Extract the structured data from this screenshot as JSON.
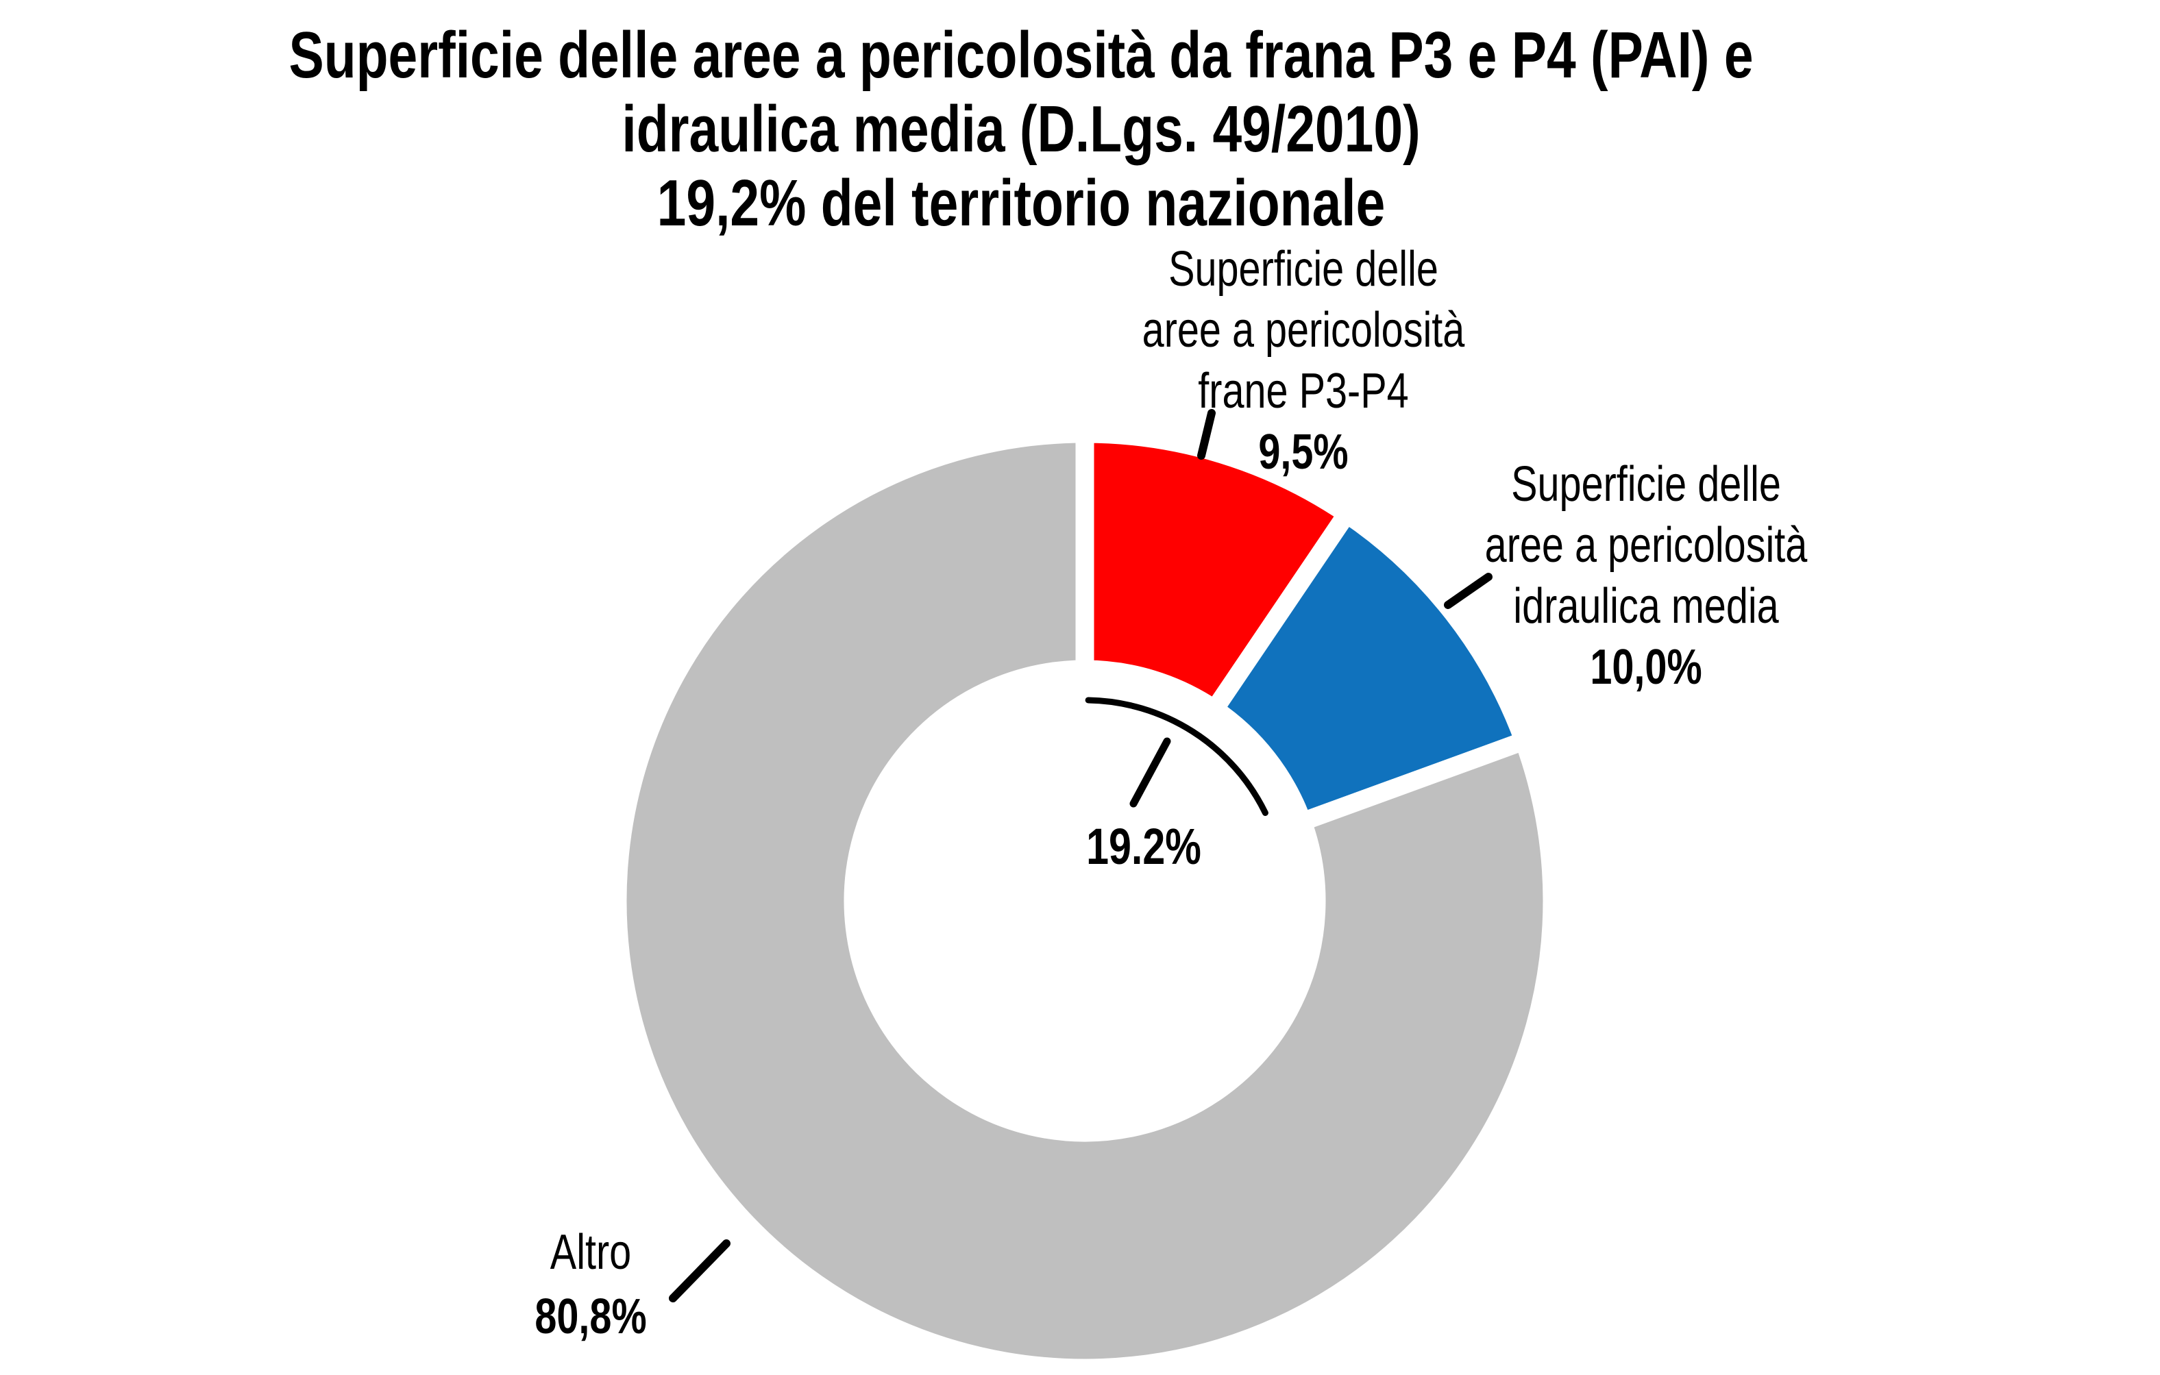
{
  "title": {
    "line1": "Superficie delle aree a pericolosità da frana P3 e P4 (PAI) e",
    "line2": "idraulica media (D.Lgs. 49/2010)",
    "line3": "19,2% del territorio nazionale"
  },
  "chart_data": {
    "type": "pie",
    "subtype": "donut",
    "title": "Superficie delle aree a pericolosità da frana P3 e P4 (PAI) e idraulica media (D.Lgs. 49/2010) 19,2% del territorio nazionale",
    "start_angle_deg": 0,
    "direction": "clockwise",
    "inner_radius_fraction": 0.52,
    "legend_position": "none",
    "slices": [
      {
        "name": "frane",
        "label_lines": [
          "Superficie delle",
          "aree a pericolosità",
          "frane P3-P4"
        ],
        "value": 9.5,
        "value_label": "9,5%",
        "color": "#ff0000"
      },
      {
        "name": "idraulica",
        "label_lines": [
          "Superficie delle",
          "aree a pericolosità",
          "idraulica media"
        ],
        "value": 10.0,
        "value_label": "10,0%",
        "color": "#1072bd"
      },
      {
        "name": "altro",
        "label_lines": [
          "Altro"
        ],
        "value": 80.8,
        "value_label": "80,8%",
        "color": "#bfbfbf"
      }
    ],
    "center_annotation": {
      "text": "19.2%",
      "value": 19.2,
      "meaning": "combined share of frane P3-P4 and idraulica media slices"
    }
  }
}
